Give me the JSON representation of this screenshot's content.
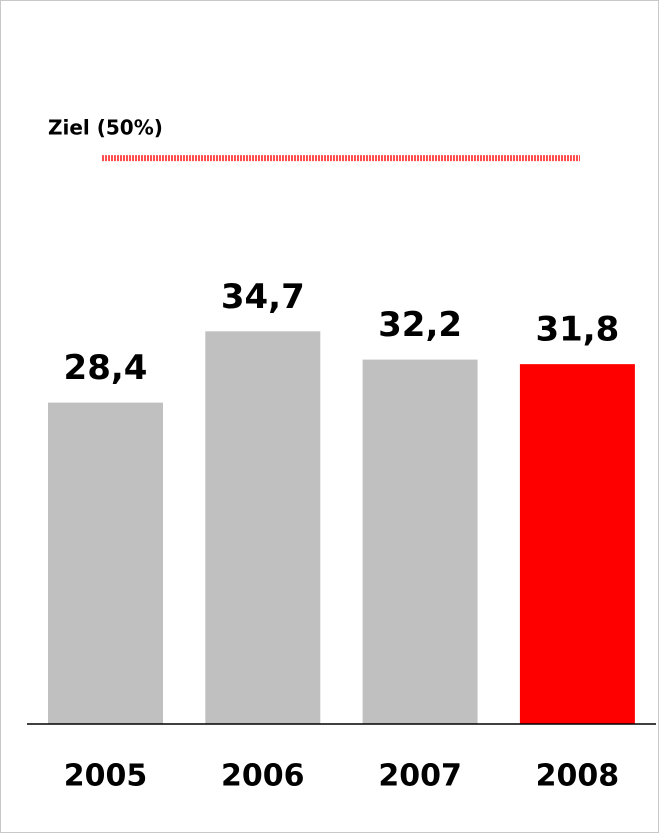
{
  "chart_data": {
    "type": "bar",
    "categories": [
      "2005",
      "2006",
      "2007",
      "2008"
    ],
    "values": [
      28.4,
      34.7,
      32.2,
      31.8
    ],
    "value_labels": [
      "28,4",
      "34,7",
      "32,2",
      "31,8"
    ],
    "colors": [
      "#c0c0c0",
      "#c0c0c0",
      "#c0c0c0",
      "#ff0000"
    ],
    "ylim": [
      0,
      60
    ],
    "target": {
      "label": "Ziel (50%)",
      "value": 50,
      "color": "#ff4d4d"
    }
  }
}
